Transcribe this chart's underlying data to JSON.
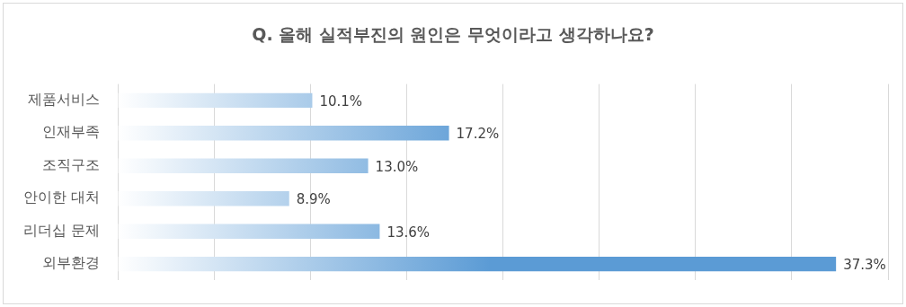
{
  "chart_data": {
    "type": "bar",
    "orientation": "horizontal",
    "title": "Q. 올해 실적부진의 원인은 무엇이라고 생각하나요?",
    "categories": [
      "제품서비스",
      "인재부족",
      "조직구조",
      "안이한 대처",
      "리더십 문제",
      "외부환경"
    ],
    "values": [
      10.1,
      17.2,
      13.0,
      8.9,
      13.6,
      37.3
    ],
    "value_labels": [
      "10.1%",
      "17.2%",
      "13.0%",
      "8.9%",
      "13.6%",
      "37.3%"
    ],
    "color": "#5b9bd5",
    "xlim": [
      0,
      40
    ],
    "xticks": [
      {
        "value": 0,
        "label": null
      },
      {
        "value": 5,
        "label": null
      },
      {
        "value": 10,
        "label": null
      },
      {
        "value": 15,
        "label": null
      },
      {
        "value": 20,
        "label": null
      },
      {
        "value": 25,
        "label": null
      },
      {
        "value": 30,
        "label": null
      },
      {
        "value": 35,
        "label": null
      },
      {
        "value": 40,
        "label": null
      }
    ],
    "grid": "x",
    "tick_labels": "y",
    "legend": false
  }
}
